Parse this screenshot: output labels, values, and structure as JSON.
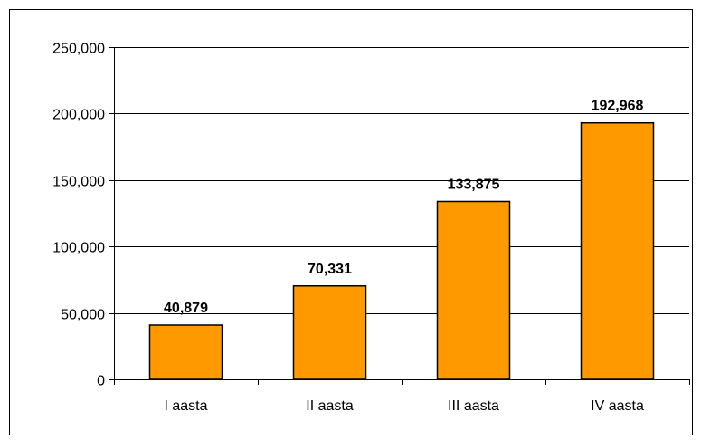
{
  "chart_data": {
    "type": "bar",
    "categories": [
      "I aasta",
      "II aasta",
      "III aasta",
      "IV aasta"
    ],
    "values": [
      40879,
      70331,
      133875,
      192968
    ],
    "data_labels": [
      "40,879",
      "70,331",
      "133,875",
      "192,968"
    ],
    "y_tick_values": [
      0,
      50000,
      100000,
      150000,
      200000,
      250000
    ],
    "y_tick_labels": [
      "0",
      "50,000",
      "100,000",
      "150,000",
      "200,000",
      "250,000"
    ],
    "title": "",
    "xlabel": "",
    "ylabel": "",
    "ylim": [
      0,
      250000
    ],
    "grid": true,
    "legend": "none",
    "colors": {
      "bar_fill": "#FF9900",
      "bar_stroke": "#000000",
      "gridline": "#000000",
      "background": "#FFFFFF"
    }
  }
}
